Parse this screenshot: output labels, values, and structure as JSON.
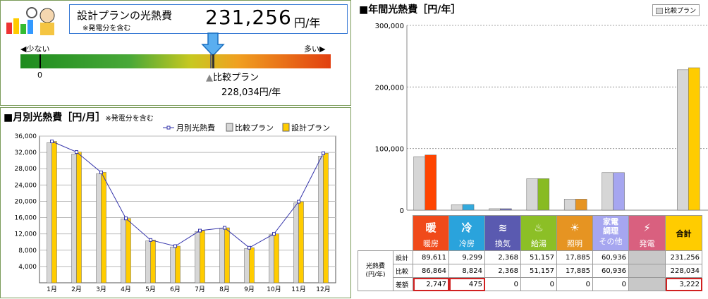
{
  "summary": {
    "title": "設計プランの光熱費",
    "note": "※発電分を含む",
    "value": "231,256",
    "unit": "円/年",
    "scale_low": "少ない",
    "scale_high": "多い",
    "scale_zero": "0",
    "compare_label": "比較プラン",
    "compare_value": "228,034円/年"
  },
  "monthly": {
    "title": "■月別光熱費［円/月］",
    "note": "※発電分を含む",
    "legend": [
      "月別光熱費",
      "比較プラン",
      "設計プラン"
    ]
  },
  "annual": {
    "title": "■年間光熱費［円/年］",
    "legend": "比較プラン"
  },
  "chart_data": [
    {
      "type": "bar",
      "title": "■月別光熱費［円/月］",
      "categories": [
        "1月",
        "2月",
        "3月",
        "4月",
        "5月",
        "6月",
        "7月",
        "8月",
        "9月",
        "10月",
        "11月",
        "12月"
      ],
      "ylim": [
        0,
        36000
      ],
      "yticks": [
        "4,000",
        "8,000",
        "12,000",
        "16,000",
        "20,000",
        "24,000",
        "28,000",
        "32,000",
        "36,000"
      ],
      "series": [
        {
          "name": "比較プラン",
          "values": [
            34400,
            31600,
            26800,
            15700,
            10300,
            8800,
            12600,
            13400,
            8400,
            11800,
            19600,
            31100
          ],
          "color": "#d6d6d6"
        },
        {
          "name": "設計プラン",
          "values": [
            34700,
            32100,
            27100,
            15800,
            10500,
            9000,
            12800,
            13500,
            8600,
            12000,
            19900,
            31800
          ],
          "color": "#ffcc00"
        },
        {
          "name": "月別光熱費",
          "values": [
            34700,
            32100,
            27100,
            15800,
            10500,
            9000,
            12800,
            13500,
            8600,
            12000,
            19900,
            31800
          ],
          "color": "#3333aa"
        }
      ]
    },
    {
      "type": "bar",
      "title": "■年間光熱費［円/年］",
      "ylim": [
        0,
        300000
      ],
      "yticks": [
        "0",
        "100,000",
        "200,000",
        "300,000"
      ],
      "categories": [
        "暖房",
        "冷房",
        "換気",
        "給湯",
        "照明",
        "その他",
        "発電",
        "合計"
      ],
      "series": [
        {
          "name": "比較プラン",
          "values": [
            86864,
            8824,
            2368,
            51157,
            17885,
            60936,
            0,
            228034
          ]
        },
        {
          "name": "設計",
          "values": [
            89611,
            9299,
            2368,
            51157,
            17885,
            60936,
            0,
            231256
          ]
        }
      ],
      "colors": [
        "#ff4400",
        "#33aadd",
        "#7070b8",
        "#88bb22",
        "#e69422",
        "#a6a6f0",
        "#d9d9d9",
        "#ffcc00"
      ]
    }
  ],
  "table": {
    "row_group": "光熱費\n(円/年)",
    "categories": [
      {
        "icon": "暖",
        "label": "暖房",
        "color": "#f04a1a"
      },
      {
        "icon": "冷",
        "label": "冷房",
        "color": "#2aa3dc"
      },
      {
        "icon": "≋",
        "label": "換気",
        "color": "#5a5ab0"
      },
      {
        "icon": "♨",
        "label": "給湯",
        "color": "#8cbf26"
      },
      {
        "icon": "☀",
        "label": "照明",
        "color": "#e69422"
      },
      {
        "icon": "家電\n調理",
        "label": "その他",
        "color": "#a6a6f0"
      },
      {
        "icon": "⚡",
        "label": "発電",
        "color": "#d9607f"
      },
      {
        "icon": "",
        "label": "合計",
        "color": "#ffcc00"
      }
    ],
    "rows": [
      {
        "label": "設計",
        "values": [
          "89,611",
          "9,299",
          "2,368",
          "51,157",
          "17,885",
          "60,936",
          "",
          "231,256"
        ]
      },
      {
        "label": "比較",
        "values": [
          "86,864",
          "8,824",
          "2,368",
          "51,157",
          "17,885",
          "60,936",
          "",
          "228,034"
        ]
      },
      {
        "label": "差額",
        "values": [
          "2,747",
          "475",
          "0",
          "0",
          "0",
          "0",
          "",
          "3,222"
        ]
      }
    ]
  }
}
